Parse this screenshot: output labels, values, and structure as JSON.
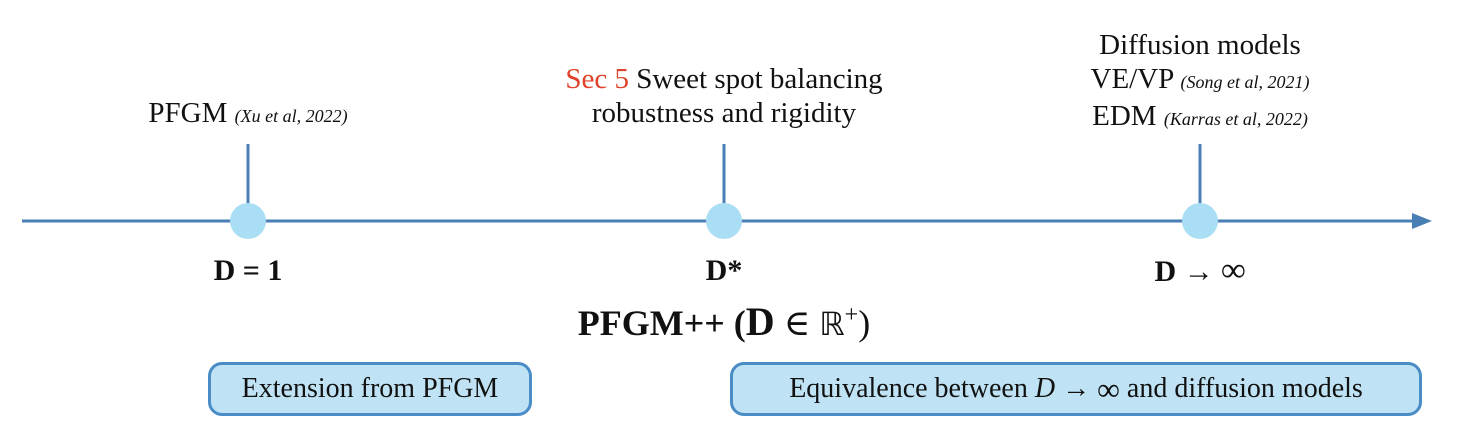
{
  "colors": {
    "axis": "#4a7fb5",
    "node": "#a9def5",
    "highlight": "#e0412a",
    "box_fill": "#bfe3f4",
    "box_border": "#4a8cc6"
  },
  "nodes": [
    {
      "id": "pfgm",
      "top_label": "PFGM",
      "top_cite": "(Xu et al, 2022)",
      "bottom_label": "D = 1"
    },
    {
      "id": "dstar",
      "top_highlight": "Sec 5",
      "top_line1": "Sweet spot balancing",
      "top_line2": "robustness and rigidity",
      "bottom_label": "D*"
    },
    {
      "id": "dinf",
      "top_line1": "Diffusion models",
      "top_line2": "VE/VP",
      "top_line2_cite": "(Song et al, 2021)",
      "top_line3": "EDM",
      "top_line3_cite": "(Karras et al, 2022)",
      "bottom_prefix": "D →",
      "bottom_symbol": "∞"
    }
  ],
  "title": {
    "prefix": "PFGM++ (",
    "var": "D",
    "rel": " ∈ ",
    "set": "ℝ",
    "sup": "+",
    "suffix": ")"
  },
  "boxes": {
    "left": {
      "label": "Extension from PFGM"
    },
    "right": {
      "prefix": "Equivalence between ",
      "var": "D",
      "arrow": " → ",
      "symbol": "∞",
      "suffix": " and diffusion models"
    }
  }
}
